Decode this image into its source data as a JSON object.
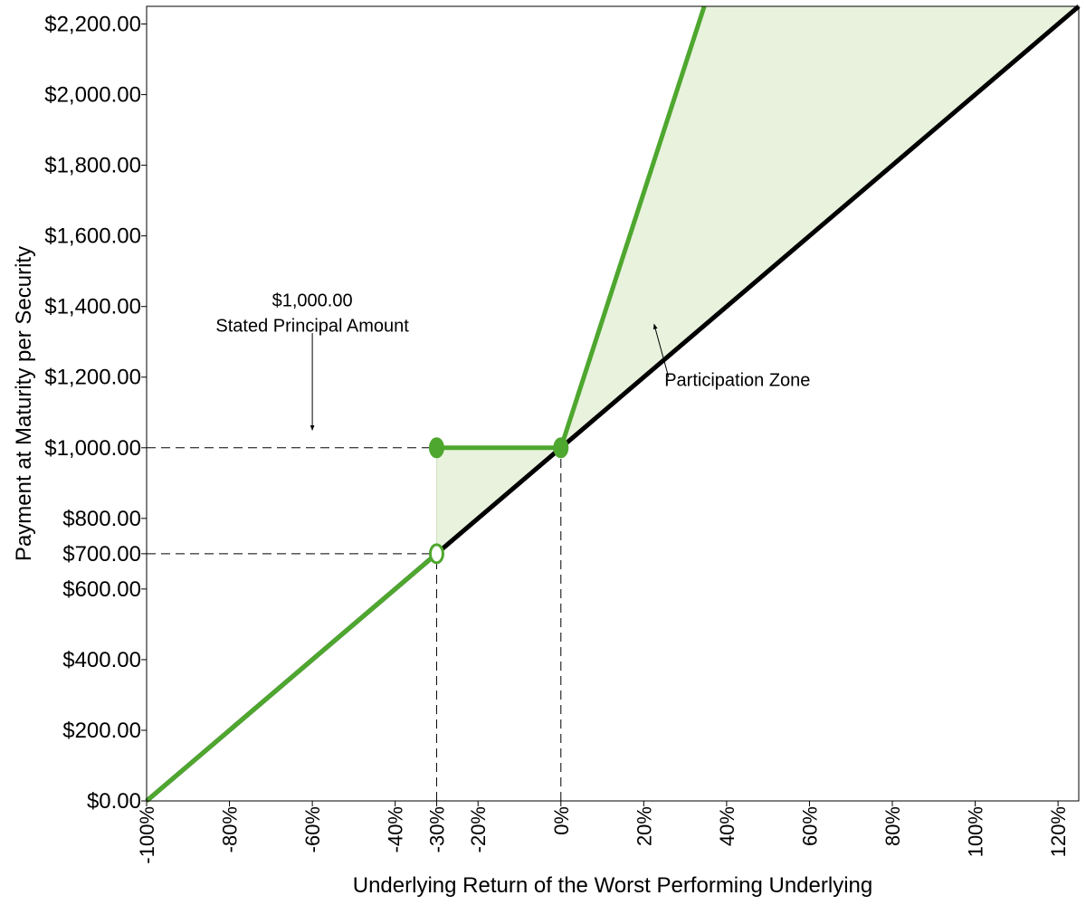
{
  "chart_data": {
    "type": "line",
    "title": "",
    "xlabel": "Underlying Return of the Worst Performing Underlying",
    "ylabel": "Payment at Maturity per Security",
    "xlim": [
      -100,
      125
    ],
    "ylim": [
      0,
      2250
    ],
    "x_ticks": [
      -100,
      -80,
      -60,
      -40,
      -30,
      -20,
      0,
      20,
      40,
      60,
      80,
      100,
      120
    ],
    "x_tick_labels": [
      "-100%",
      "-80%",
      "-60%",
      "-40%",
      "-30%",
      "-20%",
      "0%",
      "20%",
      "40%",
      "60%",
      "80%",
      "100%",
      "120%"
    ],
    "y_ticks": [
      0,
      200,
      400,
      600,
      700,
      800,
      1000,
      1200,
      1400,
      1600,
      1800,
      2000,
      2200
    ],
    "y_tick_labels": [
      "$0.00",
      "$200.00",
      "$400.00",
      "$600.00",
      "$700.00",
      "$800.00",
      "$1,000.00",
      "$1,200.00",
      "$1,400.00",
      "$1,600.00",
      "$1,800.00",
      "$2,000.00",
      "$2,200.00"
    ],
    "grid": false,
    "series": [
      {
        "key": "underlying",
        "color": "#000000",
        "x": [
          -100,
          125
        ],
        "y": [
          0,
          2250
        ]
      },
      {
        "key": "security",
        "color": "#4ea72e",
        "segments": [
          {
            "x": [
              -100,
              -30
            ],
            "y": [
              0,
              700
            ]
          },
          {
            "x": [
              -30,
              0
            ],
            "y": [
              1000,
              1000
            ]
          },
          {
            "x": [
              0,
              34.6
            ],
            "y": [
              1000,
              2250
            ]
          }
        ],
        "markers": [
          {
            "x": -30,
            "y": 1000,
            "fill": "filled"
          },
          {
            "x": 0,
            "y": 1000,
            "fill": "filled"
          },
          {
            "x": -30,
            "y": 700,
            "fill": "open"
          }
        ]
      }
    ],
    "shaded_regions": [
      {
        "color": "#e8f2dd",
        "x": [
          -30,
          -30,
          0
        ],
        "y": [
          700,
          1000,
          1000
        ]
      },
      {
        "color": "#e8f2dd",
        "x": [
          0,
          34.6,
          125
        ],
        "y": [
          1000,
          2250,
          2250
        ]
      }
    ],
    "reference_lines": [
      {
        "orientation": "horizontal",
        "y": 1000,
        "x_range": [
          -100,
          -30
        ]
      },
      {
        "orientation": "horizontal",
        "y": 700,
        "x_range": [
          -100,
          -30
        ]
      },
      {
        "orientation": "vertical",
        "x": -30,
        "y_range": [
          0,
          700
        ]
      },
      {
        "orientation": "vertical",
        "x": 0,
        "y_range": [
          0,
          1000
        ]
      }
    ],
    "annotations": [
      {
        "lines": [
          "$1,000.00",
          "Stated Principal Amount"
        ],
        "text_at": [
          -60,
          1400
        ],
        "arrow_from": [
          -60,
          1325
        ],
        "arrow_to": [
          -60,
          1050
        ]
      },
      {
        "lines": [
          "Participation Zone"
        ],
        "text_at": [
          25,
          1175
        ],
        "arrow_from": [
          26,
          1200
        ],
        "arrow_to": [
          22.5,
          1350
        ]
      }
    ]
  }
}
